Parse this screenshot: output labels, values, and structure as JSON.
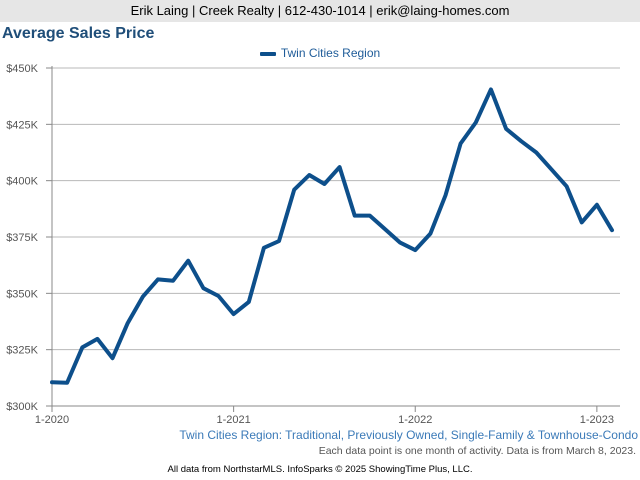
{
  "header": {
    "contact": "Erik Laing | Creek Realty | 612-430-1014 | erik@laing-homes.com"
  },
  "chart_data": {
    "type": "line",
    "title": "Average Sales Price",
    "xlabel": "",
    "ylabel": "",
    "ylim": [
      300000,
      450000
    ],
    "yticks": [
      {
        "value": 300000,
        "label": "$300K"
      },
      {
        "value": 325000,
        "label": "$325K"
      },
      {
        "value": 350000,
        "label": "$350K"
      },
      {
        "value": 375000,
        "label": "$375K"
      },
      {
        "value": 400000,
        "label": "$400K"
      },
      {
        "value": 425000,
        "label": "$425K"
      },
      {
        "value": 450000,
        "label": "$450K"
      }
    ],
    "xticks": [
      {
        "index": 0,
        "label": "1-2020"
      },
      {
        "index": 12,
        "label": "1-2021"
      },
      {
        "index": 24,
        "label": "1-2022"
      },
      {
        "index": 36,
        "label": "1-2023"
      }
    ],
    "x_count": 38,
    "legend": [
      "Twin Cities Region"
    ],
    "series": [
      {
        "name": "Twin Cities Region",
        "color": "#0d4f8b",
        "values": [
          310500,
          310300,
          326000,
          329800,
          321200,
          336800,
          348500,
          356200,
          355600,
          364500,
          352300,
          348800,
          340800,
          346200,
          370200,
          373200,
          396000,
          402500,
          398500,
          406000,
          384500,
          384500,
          378500,
          372500,
          369200,
          376500,
          393500,
          416500,
          425800,
          440500,
          423000,
          417500,
          412500,
          405000,
          397500,
          381500,
          389300,
          378000
        ]
      }
    ]
  },
  "footer": {
    "description": "Twin Cities Region: Traditional, Previously Owned, Single-Family & Townhouse-Condo",
    "note": "Each data point is one month of activity. Data is from March 8, 2023.",
    "credit": "All data from NorthstarMLS. InfoSparks © 2025 ShowingTime Plus, LLC."
  }
}
